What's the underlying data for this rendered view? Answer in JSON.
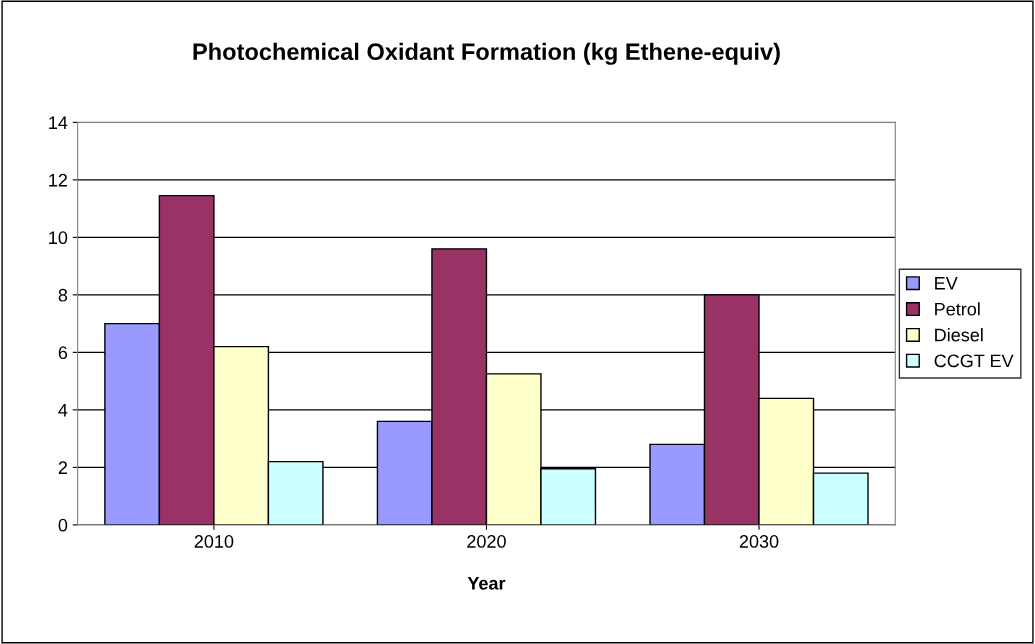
{
  "chart_data": {
    "type": "bar",
    "title": "Photochemical Oxidant Formation (kg Ethene-equiv)",
    "xlabel": "Year",
    "categories": [
      "2010",
      "2020",
      "2030"
    ],
    "series": [
      {
        "name": "EV",
        "color": "#9999ff",
        "values": [
          7.0,
          3.6,
          2.8
        ]
      },
      {
        "name": "Petrol",
        "color": "#993366",
        "values": [
          11.45,
          9.6,
          8.0
        ]
      },
      {
        "name": "Diesel",
        "color": "#ffffcc",
        "values": [
          6.2,
          5.25,
          4.4
        ]
      },
      {
        "name": "CCGT EV",
        "color": "#ccffff",
        "values": [
          2.2,
          1.95,
          1.8
        ]
      }
    ],
    "ylim": [
      0,
      14
    ],
    "yticks": [
      0,
      2,
      4,
      6,
      8,
      10,
      12,
      14
    ],
    "grid": "y",
    "legend": "right"
  }
}
